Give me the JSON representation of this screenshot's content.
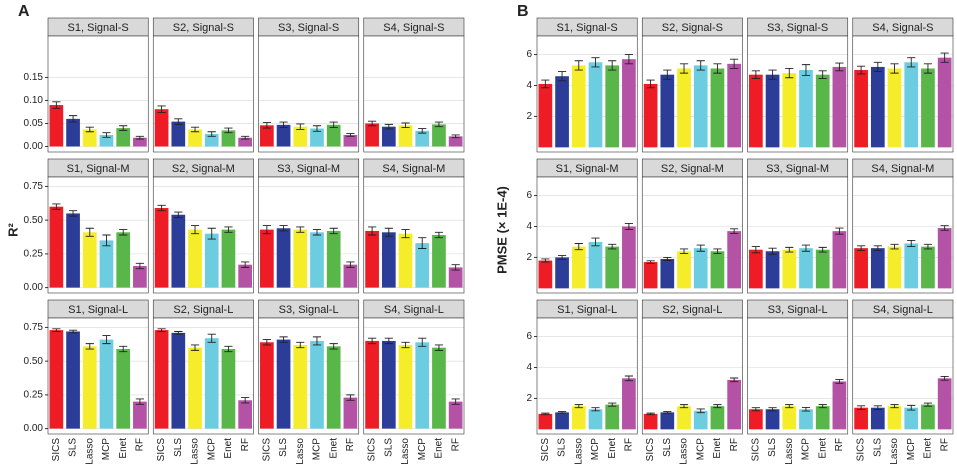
{
  "chart_data": [
    {
      "type": "bar",
      "panel_label": "A",
      "ylabel": "R²",
      "categories": [
        "SICS",
        "SLS",
        "Lasso",
        "MCP",
        "Enet",
        "RF"
      ],
      "colors": [
        "#ee1c25",
        "#2b3d98",
        "#f5ec2a",
        "#6ccde0",
        "#59b74a",
        "#b452a6"
      ],
      "rows": [
        {
          "ylim": [
            -0.012,
            0.24
          ],
          "yticks": [
            {
              "value": 0,
              "label": "0.00"
            },
            {
              "value": 0.05,
              "label": "0.05"
            },
            {
              "value": 0.1,
              "label": "0.10"
            },
            {
              "value": 0.15,
              "label": "0.15"
            }
          ],
          "facets": [
            {
              "title": "S1, Signal-S",
              "values": [
                0.09,
                0.06,
                0.037,
                0.025,
                0.04,
                0.019
              ],
              "errors": [
                0.007,
                0.007,
                0.005,
                0.005,
                0.005,
                0.003
              ]
            },
            {
              "title": "S2, Signal-S",
              "values": [
                0.081,
                0.054,
                0.037,
                0.027,
                0.035,
                0.019
              ],
              "errors": [
                0.007,
                0.006,
                0.005,
                0.005,
                0.005,
                0.003
              ]
            },
            {
              "title": "S3, Signal-S",
              "values": [
                0.046,
                0.047,
                0.043,
                0.039,
                0.047,
                0.025
              ],
              "errors": [
                0.006,
                0.006,
                0.006,
                0.006,
                0.006,
                0.003
              ]
            },
            {
              "title": "S4, Signal-S",
              "values": [
                0.05,
                0.043,
                0.046,
                0.034,
                0.048,
                0.022
              ],
              "errors": [
                0.005,
                0.005,
                0.005,
                0.005,
                0.005,
                0.003
              ]
            }
          ]
        },
        {
          "ylim": [
            -0.04,
            0.82
          ],
          "yticks": [
            {
              "value": 0,
              "label": "0.00"
            },
            {
              "value": 0.25,
              "label": "0.25"
            },
            {
              "value": 0.5,
              "label": "0.50"
            },
            {
              "value": 0.75,
              "label": "0.75"
            }
          ],
          "facets": [
            {
              "title": "S1, Signal-M",
              "values": [
                0.6,
                0.55,
                0.41,
                0.35,
                0.41,
                0.16
              ],
              "errors": [
                0.02,
                0.02,
                0.03,
                0.04,
                0.02,
                0.02
              ]
            },
            {
              "title": "S2, Signal-M",
              "values": [
                0.59,
                0.54,
                0.43,
                0.4,
                0.43,
                0.17
              ],
              "errors": [
                0.02,
                0.02,
                0.03,
                0.04,
                0.02,
                0.02
              ]
            },
            {
              "title": "S3, Signal-M",
              "values": [
                0.43,
                0.44,
                0.43,
                0.41,
                0.42,
                0.17
              ],
              "errors": [
                0.03,
                0.02,
                0.02,
                0.02,
                0.02,
                0.02
              ]
            },
            {
              "title": "S4, Signal-M",
              "values": [
                0.42,
                0.41,
                0.4,
                0.33,
                0.39,
                0.15
              ],
              "errors": [
                0.03,
                0.03,
                0.03,
                0.04,
                0.02,
                0.02
              ]
            }
          ]
        },
        {
          "ylim": [
            -0.04,
            0.82
          ],
          "yticks": [
            {
              "value": 0,
              "label": "0.00"
            },
            {
              "value": 0.25,
              "label": "0.25"
            },
            {
              "value": 0.5,
              "label": "0.50"
            },
            {
              "value": 0.75,
              "label": "0.75"
            }
          ],
          "facets": [
            {
              "title": "S1, Signal-L",
              "values": [
                0.73,
                0.72,
                0.61,
                0.66,
                0.59,
                0.2
              ],
              "errors": [
                0.01,
                0.01,
                0.02,
                0.03,
                0.02,
                0.02
              ]
            },
            {
              "title": "S2, Signal-L",
              "values": [
                0.73,
                0.71,
                0.6,
                0.67,
                0.59,
                0.21
              ],
              "errors": [
                0.01,
                0.01,
                0.02,
                0.03,
                0.02,
                0.02
              ]
            },
            {
              "title": "S3, Signal-L",
              "values": [
                0.64,
                0.66,
                0.62,
                0.65,
                0.61,
                0.23
              ],
              "errors": [
                0.02,
                0.02,
                0.02,
                0.03,
                0.02,
                0.02
              ]
            },
            {
              "title": "S4, Signal-L",
              "values": [
                0.65,
                0.65,
                0.62,
                0.64,
                0.6,
                0.2
              ],
              "errors": [
                0.02,
                0.02,
                0.02,
                0.03,
                0.02,
                0.02
              ]
            }
          ]
        }
      ]
    },
    {
      "type": "bar",
      "panel_label": "B",
      "ylabel": "PMSE (× 1E-4)",
      "categories": [
        "SICS",
        "SLS",
        "Lasso",
        "MCP",
        "Enet",
        "RF"
      ],
      "colors": [
        "#ee1c25",
        "#2b3d98",
        "#f5ec2a",
        "#6ccde0",
        "#59b74a",
        "#b452a6"
      ],
      "rows": [
        {
          "ylim": [
            -0.3,
            7.2
          ],
          "yticks": [
            2,
            4,
            6
          ],
          "facets": [
            {
              "title": "S1, Signal-S",
              "values": [
                4.1,
                4.6,
                5.3,
                5.5,
                5.3,
                5.7
              ],
              "errors": [
                0.25,
                0.3,
                0.3,
                0.3,
                0.3,
                0.3
              ]
            },
            {
              "title": "S2, Signal-S",
              "values": [
                4.1,
                4.7,
                5.1,
                5.3,
                5.1,
                5.4
              ],
              "errors": [
                0.25,
                0.3,
                0.3,
                0.3,
                0.3,
                0.3
              ]
            },
            {
              "title": "S3, Signal-S",
              "values": [
                4.7,
                4.7,
                4.8,
                5.0,
                4.7,
                5.2
              ],
              "errors": [
                0.25,
                0.3,
                0.3,
                0.35,
                0.25,
                0.25
              ]
            },
            {
              "title": "S4, Signal-S",
              "values": [
                5.0,
                5.2,
                5.1,
                5.5,
                5.1,
                5.8
              ],
              "errors": [
                0.25,
                0.3,
                0.3,
                0.3,
                0.3,
                0.3
              ]
            }
          ]
        },
        {
          "ylim": [
            -0.3,
            7.2
          ],
          "yticks": [
            2,
            4,
            6
          ],
          "facets": [
            {
              "title": "S1, Signal-M",
              "values": [
                1.8,
                2.0,
                2.7,
                3.0,
                2.7,
                4.0
              ],
              "errors": [
                0.1,
                0.12,
                0.2,
                0.25,
                0.15,
                0.2
              ]
            },
            {
              "title": "S2, Signal-M",
              "values": [
                1.7,
                1.9,
                2.4,
                2.6,
                2.4,
                3.7
              ],
              "errors": [
                0.08,
                0.1,
                0.15,
                0.2,
                0.15,
                0.15
              ]
            },
            {
              "title": "S3, Signal-M",
              "values": [
                2.5,
                2.4,
                2.5,
                2.6,
                2.5,
                3.7
              ],
              "errors": [
                0.2,
                0.2,
                0.15,
                0.2,
                0.15,
                0.2
              ]
            },
            {
              "title": "S4, Signal-M",
              "values": [
                2.6,
                2.6,
                2.7,
                2.9,
                2.7,
                3.9
              ],
              "errors": [
                0.15,
                0.15,
                0.15,
                0.2,
                0.15,
                0.15
              ]
            }
          ]
        },
        {
          "ylim": [
            -0.3,
            7.2
          ],
          "yticks": [
            2,
            4,
            6
          ],
          "facets": [
            {
              "title": "S1, Signal-L",
              "values": [
                1.0,
                1.1,
                1.5,
                1.3,
                1.6,
                3.3
              ],
              "errors": [
                0.05,
                0.05,
                0.1,
                0.1,
                0.1,
                0.15
              ]
            },
            {
              "title": "S2, Signal-L",
              "values": [
                1.0,
                1.1,
                1.5,
                1.2,
                1.5,
                3.2
              ],
              "errors": [
                0.05,
                0.05,
                0.1,
                0.12,
                0.1,
                0.12
              ]
            },
            {
              "title": "S3, Signal-L",
              "values": [
                1.3,
                1.3,
                1.5,
                1.3,
                1.5,
                3.1
              ],
              "errors": [
                0.1,
                0.1,
                0.1,
                0.12,
                0.1,
                0.12
              ]
            },
            {
              "title": "S4, Signal-L",
              "values": [
                1.4,
                1.4,
                1.5,
                1.4,
                1.6,
                3.3
              ],
              "errors": [
                0.12,
                0.12,
                0.1,
                0.15,
                0.1,
                0.12
              ]
            }
          ]
        }
      ]
    }
  ]
}
